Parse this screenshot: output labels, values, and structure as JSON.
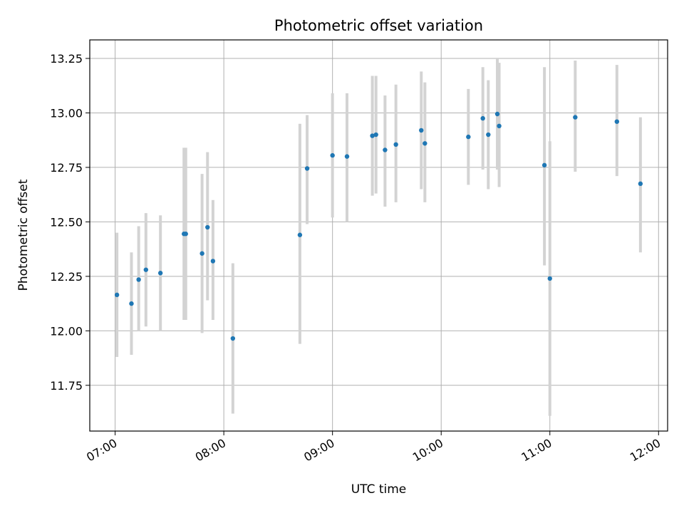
{
  "chart_data": {
    "type": "scatter",
    "title": "Photometric offset variation",
    "xlabel": "UTC time",
    "ylabel": "Photometric offset",
    "xlim": [
      "06:46",
      "12:05"
    ],
    "ylim": [
      11.54,
      13.335
    ],
    "grid": true,
    "x_ticks": [
      "07:00",
      "08:00",
      "09:00",
      "10:00",
      "11:00",
      "12:00"
    ],
    "y_ticks": [
      "11.75",
      "12.00",
      "12.25",
      "12.50",
      "12.75",
      "13.00",
      "13.25"
    ],
    "series": [
      {
        "marker_color": "#1f77b4",
        "errorbar_color": "#d3d3d3",
        "points": [
          {
            "x": "07:01",
            "y": 12.165,
            "low": 11.88,
            "high": 12.45
          },
          {
            "x": "07:09",
            "y": 12.125,
            "low": 11.89,
            "high": 12.36
          },
          {
            "x": "07:13",
            "y": 12.235,
            "low": 12.0,
            "high": 12.48
          },
          {
            "x": "07:17",
            "y": 12.28,
            "low": 12.02,
            "high": 12.54
          },
          {
            "x": "07:25",
            "y": 12.265,
            "low": 12.0,
            "high": 12.53
          },
          {
            "x": "07:38",
            "y": 12.445,
            "low": 12.05,
            "high": 12.84
          },
          {
            "x": "07:39",
            "y": 12.445,
            "low": 12.05,
            "high": 12.84
          },
          {
            "x": "07:48",
            "y": 12.355,
            "low": 11.99,
            "high": 12.72
          },
          {
            "x": "07:51",
            "y": 12.475,
            "low": 12.14,
            "high": 12.82
          },
          {
            "x": "07:54",
            "y": 12.32,
            "low": 12.05,
            "high": 12.6
          },
          {
            "x": "08:05",
            "y": 11.965,
            "low": 11.62,
            "high": 12.31
          },
          {
            "x": "08:42",
            "y": 12.44,
            "low": 11.94,
            "high": 12.95
          },
          {
            "x": "08:46",
            "y": 12.745,
            "low": 12.49,
            "high": 12.99
          },
          {
            "x": "09:00",
            "y": 12.805,
            "low": 12.52,
            "high": 13.09
          },
          {
            "x": "09:08",
            "y": 12.8,
            "low": 12.5,
            "high": 13.09
          },
          {
            "x": "09:22",
            "y": 12.895,
            "low": 12.62,
            "high": 13.17
          },
          {
            "x": "09:24",
            "y": 12.9,
            "low": 12.63,
            "high": 13.17
          },
          {
            "x": "09:29",
            "y": 12.83,
            "low": 12.57,
            "high": 13.08
          },
          {
            "x": "09:35",
            "y": 12.855,
            "low": 12.59,
            "high": 13.13
          },
          {
            "x": "09:49",
            "y": 12.92,
            "low": 12.65,
            "high": 13.19
          },
          {
            "x": "09:51",
            "y": 12.86,
            "low": 12.59,
            "high": 13.14
          },
          {
            "x": "10:15",
            "y": 12.89,
            "low": 12.67,
            "high": 13.11
          },
          {
            "x": "10:23",
            "y": 12.975,
            "low": 12.74,
            "high": 13.21
          },
          {
            "x": "10:26",
            "y": 12.9,
            "low": 12.65,
            "high": 13.15
          },
          {
            "x": "10:31",
            "y": 12.995,
            "low": 12.74,
            "high": 13.25
          },
          {
            "x": "10:32",
            "y": 12.94,
            "low": 12.66,
            "high": 13.23
          },
          {
            "x": "10:57",
            "y": 12.76,
            "low": 12.3,
            "high": 13.21
          },
          {
            "x": "11:00",
            "y": 12.24,
            "low": 11.61,
            "high": 12.87
          },
          {
            "x": "11:14",
            "y": 12.98,
            "low": 12.73,
            "high": 13.24
          },
          {
            "x": "11:37",
            "y": 12.96,
            "low": 12.71,
            "high": 13.22
          },
          {
            "x": "11:50",
            "y": 12.675,
            "low": 12.36,
            "high": 12.98
          }
        ]
      }
    ]
  }
}
